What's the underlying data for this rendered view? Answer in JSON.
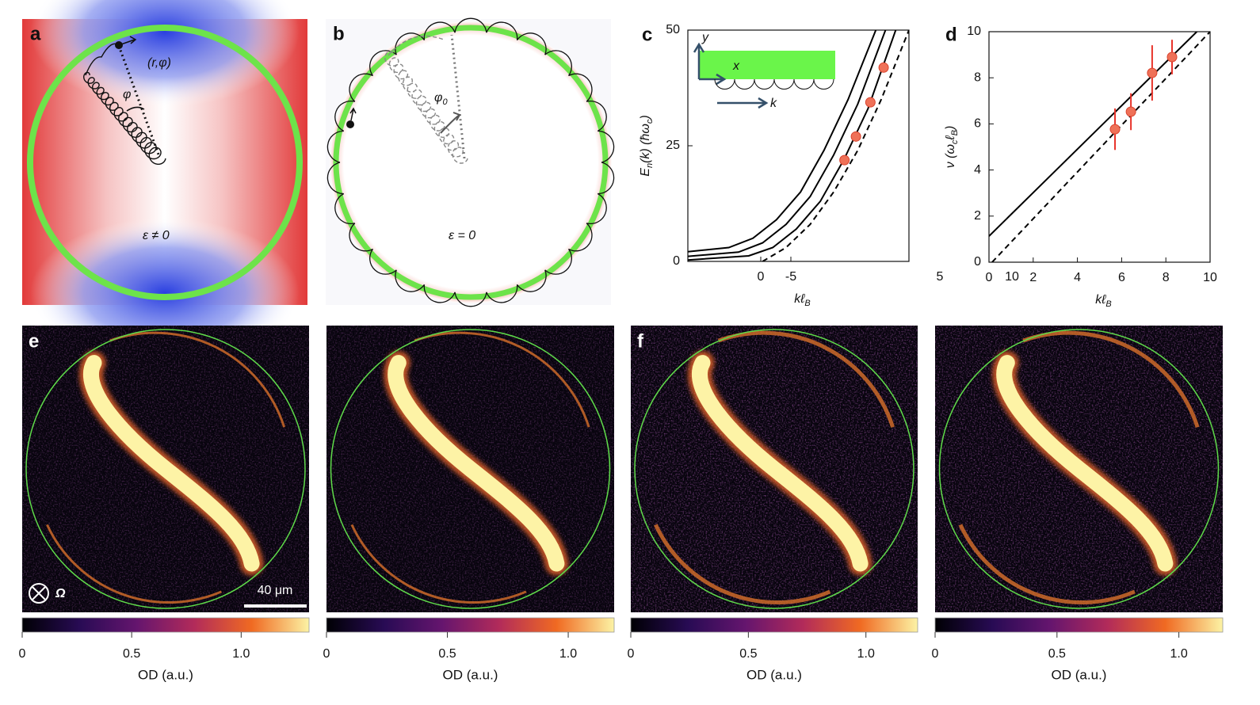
{
  "panels": {
    "a": {
      "label": "a",
      "point": "(r,φ)",
      "angle": "φ",
      "condition": "ε ≠ 0"
    },
    "b": {
      "label": "b",
      "angle": [
        "φ",
        "0"
      ],
      "condition": "ε = 0"
    },
    "c_inset": {
      "y": "y",
      "x": "x",
      "k": "k"
    },
    "d_extra": [
      "5",
      "10"
    ],
    "e": {
      "label": "e",
      "rotation": "Ω",
      "scale_bar": "40 μm"
    },
    "f": {
      "label": "f"
    }
  },
  "chart_data": [
    {
      "type": "line",
      "label": "c",
      "ylabel": [
        "E",
        "n",
        "(k) (ħω",
        "c",
        ")"
      ],
      "xlabel": [
        "kℓ",
        "B"
      ],
      "xlim": [
        12.1,
        -24.6
      ],
      "ylim": [
        0,
        50
      ],
      "xticks": [
        0,
        -5
      ],
      "yticks": [
        0,
        25,
        50
      ],
      "series": [
        {
          "color": "#000000",
          "dashed": false,
          "x": [
            12.1,
            5.3,
            1.3,
            -2.6,
            -6.6,
            -10.5,
            -14.5,
            -19.1
          ],
          "values": [
            2.1,
            3,
            5,
            9,
            15,
            24,
            35,
            50
          ]
        },
        {
          "color": "#000000",
          "dashed": false,
          "x": [
            12.1,
            3.7,
            -0.3,
            -4.2,
            -8.2,
            -12.1,
            -16.1,
            -20.7
          ],
          "values": [
            1.1,
            2,
            4,
            8,
            14,
            23,
            34,
            50
          ]
        },
        {
          "color": "#000000",
          "dashed": false,
          "x": [
            12.1,
            2.0,
            -2.0,
            -5.9,
            -9.9,
            -13.8,
            -17.8,
            -22.4
          ],
          "values": [
            0.3,
            1.2,
            3,
            7,
            13,
            22,
            33,
            50
          ]
        },
        {
          "color": "#000000",
          "dashed": true,
          "x": [
            -0.3,
            -4.2,
            -8.2,
            -12.1,
            -16.1,
            -20.0,
            -24.6
          ],
          "values": [
            0,
            3,
            8,
            15,
            24,
            35,
            50
          ]
        }
      ],
      "markers": {
        "color": "#ef7158",
        "x": [
          -13.9,
          -15.8,
          -18.2,
          -20.4
        ],
        "values": [
          21.9,
          27.0,
          34.4,
          41.9
        ]
      }
    },
    {
      "type": "line",
      "label": "d",
      "ylabel": [
        "ν (ω",
        "c",
        "ℓ",
        "B",
        ")"
      ],
      "xlabel": [
        "kℓ",
        "B"
      ],
      "xlim": [
        0,
        10
      ],
      "ylim": [
        0,
        10
      ],
      "xticks": [
        0,
        2,
        4,
        6,
        8,
        10
      ],
      "yticks": [
        0,
        2,
        4,
        6,
        8,
        10
      ],
      "series": [
        {
          "color": "#000000",
          "dashed": false,
          "x": [
            0,
            9.4
          ],
          "values": [
            1.13,
            10
          ]
        },
        {
          "color": "#000000",
          "dashed": true,
          "x": [
            0.14,
            10
          ],
          "values": [
            0,
            10
          ]
        }
      ],
      "markers": {
        "color": "#ef7158",
        "x": [
          5.7,
          6.42,
          7.38,
          8.28
        ],
        "values": [
          5.77,
          6.53,
          8.21,
          8.9
        ],
        "errors": [
          0.9,
          0.8,
          1.2,
          0.75
        ]
      }
    }
  ],
  "colorbars": [
    {
      "lim": [
        0,
        1.31
      ],
      "ticks": [
        0,
        0.5,
        {
          "value": 1,
          "label": "1.0"
        }
      ],
      "label": "OD (a.u.)"
    },
    {
      "lim": [
        0,
        1.19
      ],
      "ticks": [
        0,
        0.5,
        {
          "value": 1,
          "label": "1.0"
        }
      ],
      "label": "OD (a.u.)"
    },
    {
      "lim": [
        0,
        1.22
      ],
      "ticks": [
        0,
        0.5,
        {
          "value": 1,
          "label": "1.0"
        }
      ],
      "label": "OD (a.u.)"
    },
    {
      "lim": [
        0,
        1.18
      ],
      "ticks": [
        0,
        0.5,
        {
          "value": 1,
          "label": "1.0"
        }
      ],
      "label": "OD (a.u.)"
    }
  ]
}
